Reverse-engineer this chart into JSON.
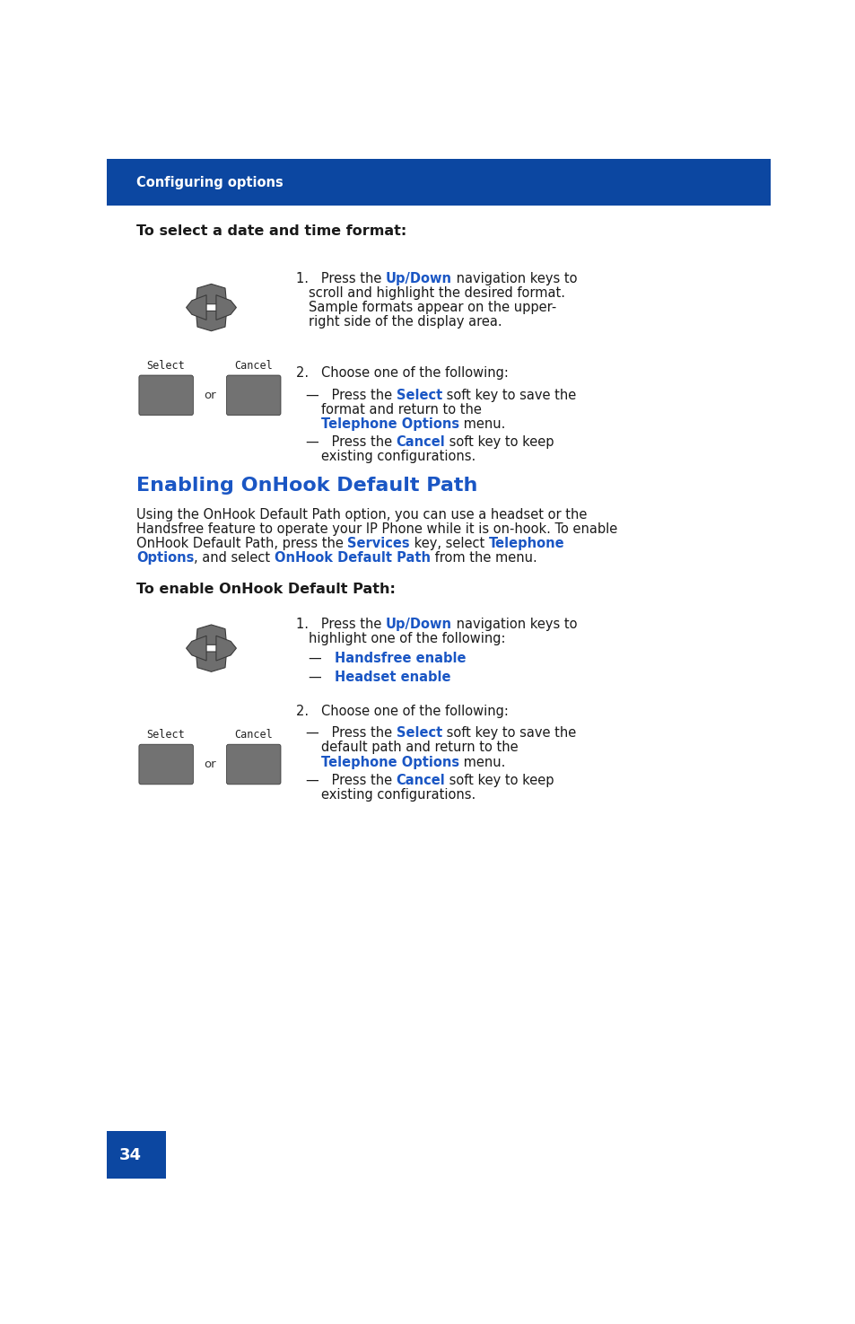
{
  "header_text": "Configuring options",
  "header_bg": "#0c47a1",
  "header_text_color": "#ffffff",
  "page_bg": "#ffffff",
  "page_num": "34",
  "page_num_bg": "#0c47a1",
  "page_num_color": "#ffffff",
  "blue_color": "#1a56c4",
  "black_color": "#1a1a1a",
  "section1_title": "To select a date and time format:",
  "section2_heading": "Enabling OnHook Default Path",
  "section3_title": "To enable OnHook Default Path:"
}
